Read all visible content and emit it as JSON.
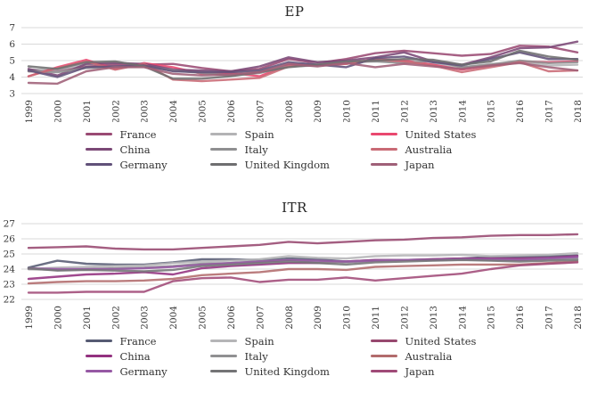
{
  "chart_data": [
    {
      "type": "line",
      "title": "EP",
      "x": [
        "1999",
        "2000",
        "2001",
        "2002",
        "2003",
        "2004",
        "2005",
        "2006",
        "2007",
        "2008",
        "2009",
        "2010",
        "2011",
        "2012",
        "2013",
        "2014",
        "2015",
        "2016",
        "2017",
        "2018"
      ],
      "ylim": [
        3,
        7
      ],
      "yticks": [
        7,
        6,
        5,
        4,
        3
      ],
      "grid": true,
      "legend_position": "bottom",
      "gridline_color": "#d9d9d9",
      "series": [
        {
          "name": "France",
          "color": "#9A4A73",
          "values": [
            4.35,
            4.4,
            4.65,
            4.75,
            4.75,
            4.8,
            4.55,
            4.35,
            4.5,
            5.1,
            4.85,
            5.1,
            5.45,
            5.6,
            5.45,
            5.3,
            5.4,
            5.9,
            5.85,
            5.5
          ]
        },
        {
          "name": "Spain",
          "color": "#B3B3B5",
          "values": [
            4.45,
            4.45,
            4.75,
            4.9,
            4.75,
            4.5,
            4.3,
            4.2,
            4.3,
            4.75,
            4.8,
            4.85,
            5.0,
            4.9,
            4.8,
            4.6,
            4.8,
            4.9,
            4.7,
            4.75
          ]
        },
        {
          "name": "United States",
          "color": "#E9486F",
          "values": [
            4.05,
            4.6,
            5.05,
            4.5,
            4.85,
            4.6,
            4.2,
            4.25,
            4.05,
            4.75,
            4.7,
            4.8,
            5.1,
            5.0,
            4.75,
            4.45,
            4.7,
            4.95,
            4.9,
            4.95
          ]
        },
        {
          "name": "China",
          "color": "#7B4876",
          "values": [
            4.5,
            4.1,
            4.8,
            4.85,
            4.8,
            4.45,
            4.4,
            4.35,
            4.65,
            5.2,
            4.9,
            5.0,
            5.2,
            5.5,
            4.95,
            4.75,
            5.2,
            5.75,
            5.8,
            6.15
          ]
        },
        {
          "name": "Italy",
          "color": "#8F8F91",
          "values": [
            4.35,
            4.3,
            4.55,
            4.6,
            4.65,
            4.4,
            4.25,
            4.1,
            4.25,
            4.65,
            4.7,
            4.9,
            4.95,
            4.85,
            5.0,
            4.6,
            4.75,
            5.0,
            4.85,
            4.9
          ]
        },
        {
          "name": "Australia",
          "color": "#C96A75",
          "values": [
            4.05,
            4.55,
            4.95,
            4.45,
            4.8,
            3.85,
            3.75,
            3.85,
            3.95,
            4.65,
            4.75,
            4.8,
            5.05,
            4.95,
            4.7,
            4.3,
            4.6,
            4.9,
            4.35,
            4.4
          ]
        },
        {
          "name": "Germany",
          "color": "#615179",
          "values": [
            4.4,
            4.0,
            4.6,
            4.65,
            4.7,
            4.35,
            4.3,
            4.3,
            4.4,
            4.9,
            4.75,
            4.6,
            5.15,
            5.25,
            4.9,
            4.7,
            5.1,
            5.5,
            5.1,
            5.1
          ]
        },
        {
          "name": "United Kingdom",
          "color": "#6E6E70",
          "values": [
            4.65,
            4.5,
            4.9,
            4.95,
            4.65,
            3.9,
            3.9,
            4.05,
            4.3,
            4.6,
            4.75,
            4.95,
            5.0,
            5.1,
            5.05,
            4.75,
            4.95,
            5.6,
            5.25,
            5.05
          ]
        },
        {
          "name": "Japan",
          "color": "#9F6078",
          "values": [
            3.65,
            3.6,
            4.35,
            4.6,
            4.6,
            4.2,
            4.1,
            4.15,
            4.3,
            4.8,
            4.65,
            4.85,
            4.6,
            4.8,
            4.65,
            4.5,
            4.7,
            4.85,
            4.6,
            4.4
          ]
        }
      ]
    },
    {
      "type": "line",
      "title": "ITR",
      "x": [
        "1999",
        "2000",
        "2001",
        "2002",
        "2003",
        "2004",
        "2005",
        "2006",
        "2007",
        "2008",
        "2009",
        "2010",
        "2011",
        "2012",
        "2013",
        "2014",
        "2015",
        "2016",
        "2017",
        "2018"
      ],
      "ylim": [
        22,
        27
      ],
      "yticks": [
        27,
        26,
        25,
        24,
        23,
        22
      ],
      "grid": true,
      "legend_position": "bottom",
      "gridline_color": "#d9d9d9",
      "series": [
        {
          "name": "France",
          "color": "#565B73",
          "values": [
            24.1,
            24.55,
            24.35,
            24.3,
            24.3,
            24.45,
            24.65,
            24.65,
            24.6,
            24.7,
            24.65,
            24.5,
            24.6,
            24.6,
            24.65,
            24.7,
            24.8,
            24.8,
            24.85,
            24.9
          ]
        },
        {
          "name": "Spain",
          "color": "#B5B5B7",
          "values": [
            24.0,
            24.1,
            24.15,
            24.2,
            24.25,
            24.4,
            24.5,
            24.55,
            24.65,
            24.85,
            24.75,
            24.7,
            24.85,
            24.9,
            24.9,
            24.95,
            24.85,
            24.9,
            24.95,
            25.05
          ]
        },
        {
          "name": "United States",
          "color": "#97486F",
          "values": [
            25.4,
            25.45,
            25.5,
            25.35,
            25.3,
            25.3,
            25.4,
            25.5,
            25.6,
            25.8,
            25.7,
            25.8,
            25.9,
            25.95,
            26.05,
            26.1,
            26.2,
            26.25,
            26.25,
            26.3
          ]
        },
        {
          "name": "China",
          "color": "#93317F",
          "values": [
            23.35,
            23.5,
            23.65,
            23.7,
            23.8,
            23.65,
            24.05,
            24.2,
            24.3,
            24.4,
            24.4,
            24.5,
            24.6,
            24.6,
            24.65,
            24.7,
            24.7,
            24.7,
            24.75,
            24.85
          ]
        },
        {
          "name": "Italy",
          "color": "#909092",
          "values": [
            24.0,
            23.95,
            24.0,
            24.05,
            24.1,
            24.2,
            24.35,
            24.4,
            24.5,
            24.6,
            24.5,
            24.45,
            24.55,
            24.6,
            24.6,
            24.65,
            24.6,
            24.6,
            24.65,
            24.7
          ]
        },
        {
          "name": "Australia",
          "color": "#B26B6C",
          "values": [
            23.05,
            23.15,
            23.2,
            23.2,
            23.25,
            23.35,
            23.6,
            23.7,
            23.8,
            24.0,
            24.0,
            23.95,
            24.15,
            24.2,
            24.25,
            24.3,
            24.3,
            24.3,
            24.4,
            24.5
          ]
        },
        {
          "name": "Germany",
          "color": "#9659A4",
          "values": [
            24.05,
            24.0,
            24.0,
            24.0,
            24.05,
            24.15,
            24.3,
            24.4,
            24.5,
            24.6,
            24.55,
            24.5,
            24.55,
            24.6,
            24.6,
            24.65,
            24.65,
            24.6,
            24.7,
            24.8
          ]
        },
        {
          "name": "United Kingdom",
          "color": "#747476",
          "values": [
            24.05,
            23.9,
            23.95,
            23.9,
            23.85,
            23.95,
            24.2,
            24.3,
            24.4,
            24.5,
            24.4,
            24.3,
            24.45,
            24.5,
            24.55,
            24.6,
            24.55,
            24.5,
            24.55,
            24.6
          ]
        },
        {
          "name": "Japan",
          "color": "#A04A78",
          "values": [
            22.45,
            22.45,
            22.5,
            22.5,
            22.5,
            23.2,
            23.4,
            23.45,
            23.15,
            23.3,
            23.3,
            23.45,
            23.25,
            23.4,
            23.55,
            23.7,
            24.0,
            24.25,
            24.35,
            24.45
          ]
        }
      ]
    }
  ]
}
